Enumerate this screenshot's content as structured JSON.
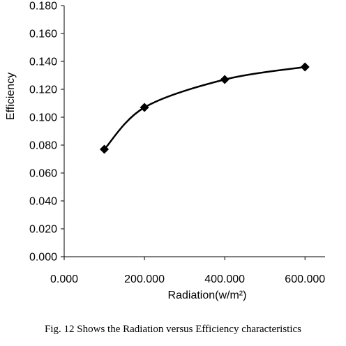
{
  "caption": "Fig. 12 Shows the Radiation versus Efficiency characteristics",
  "chart_data": {
    "type": "line",
    "title": "",
    "xlabel": "Radiation(w/m²)",
    "ylabel": "Efficiency",
    "x": [
      100,
      200,
      400,
      600
    ],
    "series": [
      {
        "values": [
          0.077,
          0.107,
          0.127,
          0.136
        ]
      }
    ],
    "xlim": [
      0,
      650
    ],
    "ylim": [
      0,
      0.18
    ],
    "x_ticks": [
      0,
      200,
      400,
      600
    ],
    "x_tick_labels": [
      "0.000",
      "200.000",
      "400.000",
      "600.000"
    ],
    "y_ticks": [
      0,
      0.02,
      0.04,
      0.06,
      0.08,
      0.1,
      0.12,
      0.14,
      0.16,
      0.18
    ],
    "y_tick_labels": [
      "0.000",
      "0.020",
      "0.040",
      "0.060",
      "0.080",
      "0.100",
      "0.120",
      "0.140",
      "0.160",
      "0.180"
    ],
    "grid": false,
    "smooth": true,
    "marker": "diamond",
    "line_color": "#000000"
  }
}
